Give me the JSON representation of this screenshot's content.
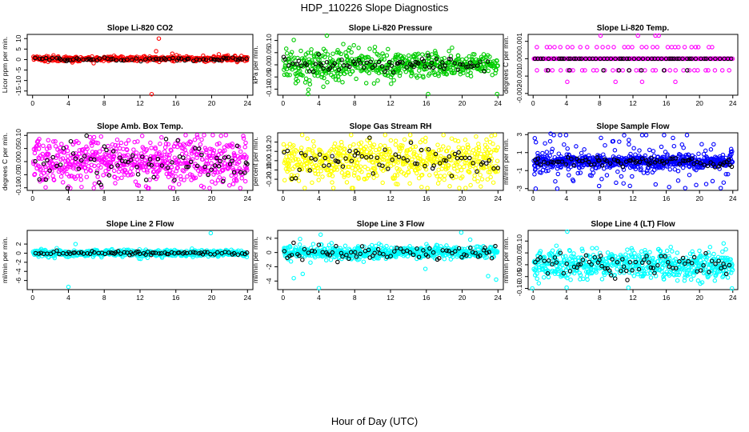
{
  "figure": {
    "title": "HDP_110226  Slope Diagnostics",
    "xlabel": "Hour of Day (UTC)"
  },
  "colors": {
    "black": "#000000",
    "red": "#ff0000",
    "green": "#00cc00",
    "magenta": "#ff00ff",
    "yellow": "#ffff00",
    "blue": "#0000ff",
    "cyan": "#00ffff"
  },
  "chart_data": [
    {
      "type": "scatter",
      "title": "Slope Li-820 CO2",
      "ylabel": "Licor ppm per min.",
      "xlim": [
        -0.6,
        24.6
      ],
      "ylim": [
        -17,
        12
      ],
      "xticks": [
        0,
        4,
        8,
        12,
        16,
        20,
        24
      ],
      "yticks": [
        -15,
        -10,
        -5,
        0,
        5,
        10
      ],
      "color": "#ff0000",
      "series": [
        {
          "name": "all",
          "model": "noise",
          "n": 420,
          "spread": 0.6,
          "center": 0.3,
          "step": 0.06
        },
        {
          "name": "highlighted",
          "color": "#000000",
          "model": "noise",
          "n": 70,
          "spread": 0.4,
          "center": 0.2,
          "step": 0.35
        },
        {
          "name": "outliers",
          "points": [
            [
              13.3,
              -16.5
            ],
            [
              14.1,
              10
            ],
            [
              13.8,
              4
            ],
            [
              20.8,
              2.5
            ],
            [
              21.8,
              2
            ],
            [
              9.1,
              1.8
            ],
            [
              17.2,
              1.5
            ],
            [
              22.6,
              1.8
            ],
            [
              4.9,
              1.2
            ],
            [
              12.5,
              1.6
            ],
            [
              15.6,
              2.8
            ]
          ]
        }
      ]
    },
    {
      "type": "scatter",
      "title": "Slope Li-820 Pressure",
      "ylabel": "kPa per min.",
      "xlim": [
        -0.6,
        24.6
      ],
      "ylim": [
        -0.125,
        0.125
      ],
      "xticks": [
        0,
        4,
        8,
        12,
        16,
        20,
        24
      ],
      "yticks": [
        -0.1,
        -0.05,
        0.0,
        0.05,
        0.1
      ],
      "ytick_labels": [
        "-0.10",
        "-0.05",
        "0.00",
        "0.05",
        "0.10"
      ],
      "color": "#00cc00",
      "series": [
        {
          "name": "all",
          "model": "noise",
          "n": 560,
          "spread": 0.03,
          "center": 0.0,
          "decay": true,
          "step": 0.043
        },
        {
          "name": "highlighted",
          "color": "#000000",
          "model": "noise",
          "n": 80,
          "spread": 0.015,
          "center": 0.0,
          "step": 0.3
        },
        {
          "name": "outliers",
          "points": [
            [
              4.9,
              0.12
            ],
            [
              2.8,
              -0.12
            ],
            [
              16.2,
              -0.12
            ],
            [
              23.9,
              -0.12
            ],
            [
              4.5,
              -0.09
            ],
            [
              3.0,
              -0.08
            ],
            [
              6.1,
              0.06
            ]
          ]
        }
      ]
    },
    {
      "type": "scatter",
      "title": "Slope Li-820 Temp.",
      "ylabel": "degrees C per min.",
      "xlim": [
        -0.6,
        24.6
      ],
      "ylim": [
        -0.0021,
        0.0014
      ],
      "xticks": [
        0,
        4,
        8,
        12,
        16,
        20,
        24
      ],
      "yticks": [
        -0.002,
        -0.001,
        0.0,
        0.001
      ],
      "ytick_labels": [
        "-0.002",
        "-0.001",
        "0.000",
        "0.001"
      ],
      "color": "#ff00ff",
      "series": [
        {
          "name": "all",
          "model": "levels",
          "levels": [
            0.0
          ],
          "n": 240,
          "step": 0.1
        },
        {
          "name": "highlighted",
          "color": "#000000",
          "model": "levels",
          "levels": [
            0.0
          ],
          "n": 60,
          "step": 0.4
        },
        {
          "name": "upper",
          "model": "levels",
          "levels": [
            0.000667
          ],
          "n": 30,
          "step": 0.8,
          "seed_offset": 3
        },
        {
          "name": "lower",
          "model": "levels",
          "levels": [
            -0.000667
          ],
          "n": 34,
          "step": 0.7,
          "seed_offset": 7
        },
        {
          "name": "lower_black",
          "color": "#000000",
          "model": "levels",
          "levels": [
            -0.000667
          ],
          "n": 8,
          "step": 2.6,
          "seed_offset": 11
        },
        {
          "name": "outliers",
          "points": [
            [
              12.6,
              0.00133
            ],
            [
              14.7,
              0.00133
            ],
            [
              9.9,
              -0.00133
            ],
            [
              13.1,
              -0.00133
            ],
            [
              17.1,
              -0.00133
            ],
            [
              8.1,
              0.00133
            ],
            [
              4.1,
              -0.00133
            ],
            [
              15.1,
              0.00133
            ]
          ]
        }
      ]
    },
    {
      "type": "scatter",
      "title": "Slope Amb. Box Temp.",
      "ylabel": "degrees C per min.",
      "xlim": [
        -0.6,
        24.6
      ],
      "ylim": [
        -0.11,
        0.11
      ],
      "xticks": [
        0,
        4,
        8,
        12,
        16,
        20,
        24
      ],
      "yticks": [
        -0.1,
        -0.05,
        0.0,
        0.05,
        0.1
      ],
      "ytick_labels": [
        "-0.10",
        "-0.05",
        "0.00",
        "0.05",
        "0.10"
      ],
      "color": "#ff00ff",
      "series": [
        {
          "name": "all",
          "model": "noise",
          "n": 640,
          "spread": 0.045,
          "center": 0.0,
          "step": 0.0375
        },
        {
          "name": "highlighted",
          "color": "#000000",
          "model": "noise",
          "n": 80,
          "spread": 0.04,
          "center": 0.0,
          "step": 0.3
        }
      ]
    },
    {
      "type": "scatter",
      "title": "Slope Gas Stream RH",
      "ylabel": "percent per min.",
      "xlim": [
        -0.6,
        24.6
      ],
      "ylim": [
        -0.32,
        0.3
      ],
      "xticks": [
        0,
        4,
        8,
        12,
        16,
        20,
        24
      ],
      "yticks": [
        -0.2,
        -0.1,
        0.0,
        0.1,
        0.2
      ],
      "ytick_labels": [
        "-0.20",
        "-0.10",
        "0.00",
        "0.10",
        "0.20"
      ],
      "color": "#ffff00",
      "series": [
        {
          "name": "all",
          "model": "noise",
          "n": 600,
          "spread": 0.12,
          "center": 0.0,
          "step": 0.04
        },
        {
          "name": "highlighted",
          "color": "#000000",
          "model": "noise",
          "n": 75,
          "spread": 0.08,
          "center": 0.0,
          "step": 0.32
        }
      ]
    },
    {
      "type": "scatter",
      "title": "Slope Sample Flow",
      "ylabel": "ml/min per min.",
      "xlim": [
        -0.6,
        24.6
      ],
      "ylim": [
        -3.2,
        3.2
      ],
      "xticks": [
        0,
        4,
        8,
        12,
        16,
        20,
        24
      ],
      "yticks": [
        -3,
        -1,
        1,
        3
      ],
      "color": "#0000ff",
      "series": [
        {
          "name": "all",
          "model": "noise",
          "n": 560,
          "spread": 0.35,
          "center": 0.0,
          "step": 0.043
        },
        {
          "name": "wide",
          "model": "noise",
          "n": 150,
          "spread": 1.5,
          "center": 0.2,
          "step": 0.16,
          "seed_offset": 5
        },
        {
          "name": "highlighted",
          "color": "#000000",
          "model": "noise",
          "n": 80,
          "spread": 0.25,
          "center": 0.0,
          "step": 0.3
        },
        {
          "name": "outliers",
          "points": [
            [
              0.2,
              2.6
            ],
            [
              2.1,
              3.1
            ],
            [
              0.3,
              -3.0
            ],
            [
              2.9,
              -3.0
            ],
            [
              19.6,
              -2.6
            ],
            [
              20.8,
              -2.5
            ],
            [
              23.8,
              1.4
            ],
            [
              11.5,
              2.4
            ]
          ]
        }
      ]
    },
    {
      "type": "scatter",
      "title": "Slope Line 2 Flow",
      "ylabel": "ml/min per min.",
      "xlim": [
        -0.6,
        24.6
      ],
      "ylim": [
        -8,
        5
      ],
      "xticks": [
        0,
        4,
        8,
        12,
        16,
        20,
        24
      ],
      "yticks": [
        -6,
        -4,
        -2,
        0,
        2
      ],
      "color": "#00ffff",
      "series": [
        {
          "name": "all",
          "model": "noise",
          "n": 560,
          "spread": 0.35,
          "center": 0.0,
          "step": 0.043
        },
        {
          "name": "highlighted",
          "color": "#000000",
          "model": "noise",
          "n": 80,
          "spread": 0.2,
          "center": 0.0,
          "step": 0.3
        },
        {
          "name": "outliers",
          "points": [
            [
              4.0,
              -7.4
            ],
            [
              19.9,
              4.4
            ],
            [
              4.8,
              2.0
            ],
            [
              2.7,
              1.1
            ],
            [
              17.8,
              1.0
            ],
            [
              11.9,
              -1.2
            ]
          ]
        }
      ]
    },
    {
      "type": "scatter",
      "title": "Slope Line 3 Flow",
      "ylabel": "ml/min per min.",
      "xlim": [
        -0.6,
        24.6
      ],
      "ylim": [
        -5.2,
        3.1
      ],
      "xticks": [
        0,
        4,
        8,
        12,
        16,
        20,
        24
      ],
      "yticks": [
        -4,
        -2,
        0,
        2
      ],
      "color": "#00ffff",
      "series": [
        {
          "name": "all",
          "model": "noise",
          "n": 560,
          "spread": 0.45,
          "center": 0.0,
          "step": 0.043
        },
        {
          "name": "highlighted",
          "color": "#000000",
          "model": "noise",
          "n": 80,
          "spread": 0.55,
          "center": 0.0,
          "step": 0.3
        },
        {
          "name": "outliers",
          "points": [
            [
              4.0,
              -5.0
            ],
            [
              1.9,
              1.9
            ],
            [
              15.9,
              -2.3
            ],
            [
              22.9,
              -3.3
            ],
            [
              23.8,
              -3.8
            ],
            [
              19.9,
              2.8
            ],
            [
              20.9,
              1.8
            ],
            [
              1.2,
              -3.6
            ],
            [
              2.2,
              -3.0
            ],
            [
              4.2,
              2.5
            ],
            [
              9.0,
              -1.3
            ]
          ]
        }
      ]
    },
    {
      "type": "scatter",
      "title": "Slope Line 4 (LT) Flow",
      "ylabel": "ml/min per min.",
      "xlim": [
        -0.6,
        24.6
      ],
      "ylim": [
        -0.105,
        0.145
      ],
      "xticks": [
        0,
        4,
        8,
        12,
        16,
        20,
        24
      ],
      "yticks": [
        -0.1,
        -0.05,
        0.0,
        0.05,
        0.1
      ],
      "ytick_labels": [
        "-0.10",
        "-0.05",
        "0.00",
        "0.05",
        "0.10"
      ],
      "color": "#00ffff",
      "series": [
        {
          "name": "all",
          "model": "noise",
          "n": 600,
          "spread": 0.03,
          "center": 0.0,
          "step": 0.04
        },
        {
          "name": "highlighted",
          "color": "#000000",
          "model": "noise",
          "n": 80,
          "spread": 0.025,
          "center": 0.0,
          "step": 0.3
        },
        {
          "name": "outliers",
          "points": [
            [
              4.1,
              0.14
            ],
            [
              -0.1,
              -0.1
            ],
            [
              23.9,
              -0.1
            ],
            [
              2.8,
              0.08
            ],
            [
              7.1,
              0.07
            ],
            [
              22.9,
              0.09
            ],
            [
              20.1,
              -0.08
            ]
          ]
        }
      ]
    }
  ]
}
